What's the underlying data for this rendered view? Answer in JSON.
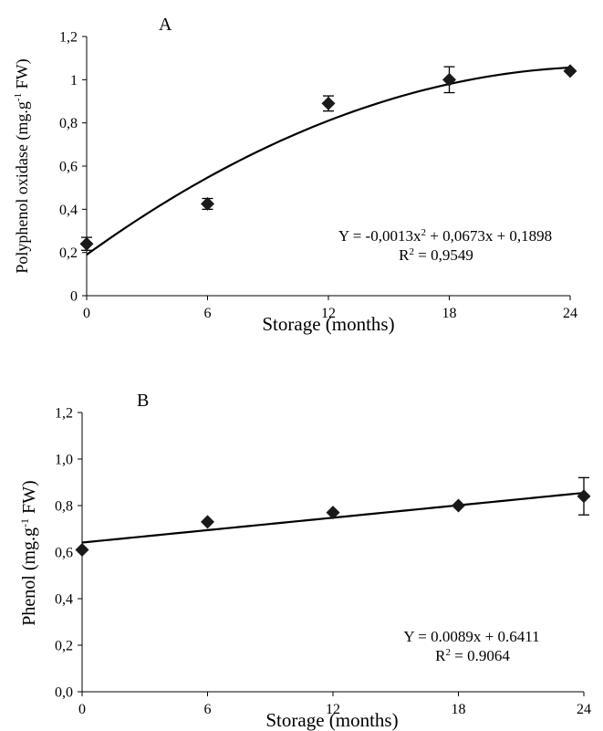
{
  "chart_data": [
    {
      "type": "scatter",
      "panel_label": "A",
      "xlabel": "Storage (months)",
      "ylabel_main": "Polyphenol oxidase (mg.g",
      "ylabel_sup": "-1",
      "ylabel_tail": " FW)",
      "x": [
        0,
        6,
        12,
        18,
        24
      ],
      "y": [
        0.24,
        0.425,
        0.89,
        1.0,
        1.04
      ],
      "err": [
        0.03,
        0.025,
        0.035,
        0.06,
        0.0
      ],
      "xlim": [
        0,
        24
      ],
      "ylim": [
        0,
        1.2
      ],
      "xticks": [
        "0",
        "6",
        "12",
        "18",
        "24"
      ],
      "yticks": [
        "0",
        "0,2",
        "0,4",
        "0,6",
        "0,8",
        "1",
        "1,2"
      ],
      "trend": {
        "kind": "quadratic",
        "coefficients": [
          -0.0013,
          0.0673,
          0.1898
        ]
      },
      "equation_main": "Y = -0,0013x",
      "equation_sup": "2",
      "equation_tail": " + 0,0673x + 0,1898",
      "r2_main": "R",
      "r2_sup": "2",
      "r2_tail": " = 0,9549",
      "grid": false,
      "marker": "diamond"
    },
    {
      "type": "scatter",
      "panel_label": "B",
      "xlabel": "Storage (months)",
      "ylabel_main": "Phenol (mg.g",
      "ylabel_sup": "-1",
      "ylabel_tail": " FW)",
      "x": [
        0,
        6,
        12,
        18,
        24
      ],
      "y": [
        0.61,
        0.73,
        0.77,
        0.8,
        0.84
      ],
      "err": [
        0.0,
        0.0,
        0.0,
        0.0,
        0.08
      ],
      "xlim": [
        0,
        24
      ],
      "ylim": [
        0,
        1.2
      ],
      "xticks": [
        "0",
        "6",
        "12",
        "18",
        "24"
      ],
      "yticks": [
        "0,0",
        "0,2",
        "0,4",
        "0,6",
        "0,8",
        "1,0",
        "1,2"
      ],
      "trend": {
        "kind": "linear",
        "coefficients": [
          0.0089,
          0.6411
        ]
      },
      "equation_main": "Y = 0.0089x + 0.6411",
      "equation_sup": "",
      "equation_tail": "",
      "r2_main": "R",
      "r2_sup": "2",
      "r2_tail": " = 0.9064",
      "grid": false,
      "marker": "diamond"
    }
  ]
}
